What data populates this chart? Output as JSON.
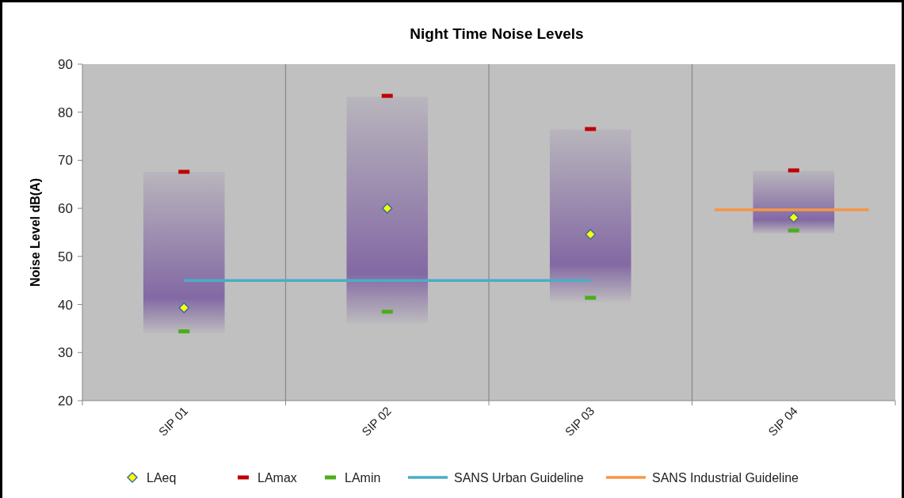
{
  "chart_data": {
    "type": "bar",
    "title": "Night Time Noise Levels",
    "ylabel": "Noise Level dB(A)",
    "categories": [
      "SIP 01",
      "SIP 02",
      "SIP 03",
      "SIP 04"
    ],
    "series": [
      {
        "color": "#8064a2",
        "base": [
          34,
          36,
          40.5,
          54.7
        ],
        "values": [
          33.6,
          47.2,
          35.9,
          13.1
        ]
      },
      {
        "type": "scatter",
        "name": "LAeq",
        "color": "#ffff00",
        "marker": "diamond",
        "values": [
          39.3,
          60.0,
          54.6,
          58.1
        ]
      },
      {
        "type": "scatter",
        "name": "LAmax",
        "color": "#c00000",
        "marker": "square",
        "values": [
          67.6,
          83.4,
          76.5,
          67.9
        ]
      },
      {
        "type": "scatter",
        "name": "LAmin",
        "color": "#4ead1a",
        "marker": "square",
        "values": [
          34.4,
          38.5,
          41.4,
          55.4
        ]
      },
      {
        "type": "line",
        "name": "SANS Urban Guideline",
        "color": "#4bacc6",
        "values": [
          45,
          45,
          45,
          null
        ]
      }
    ],
    "ref_lines": [
      {
        "axis": "y",
        "value": 59.7,
        "label": "SANS Industrial Guideline",
        "color": "#f79646"
      }
    ],
    "ylim": [
      20,
      90
    ],
    "yticks": [
      20,
      30,
      40,
      50,
      60,
      70,
      80,
      90
    ],
    "grid": "x",
    "legend": "bottom"
  }
}
